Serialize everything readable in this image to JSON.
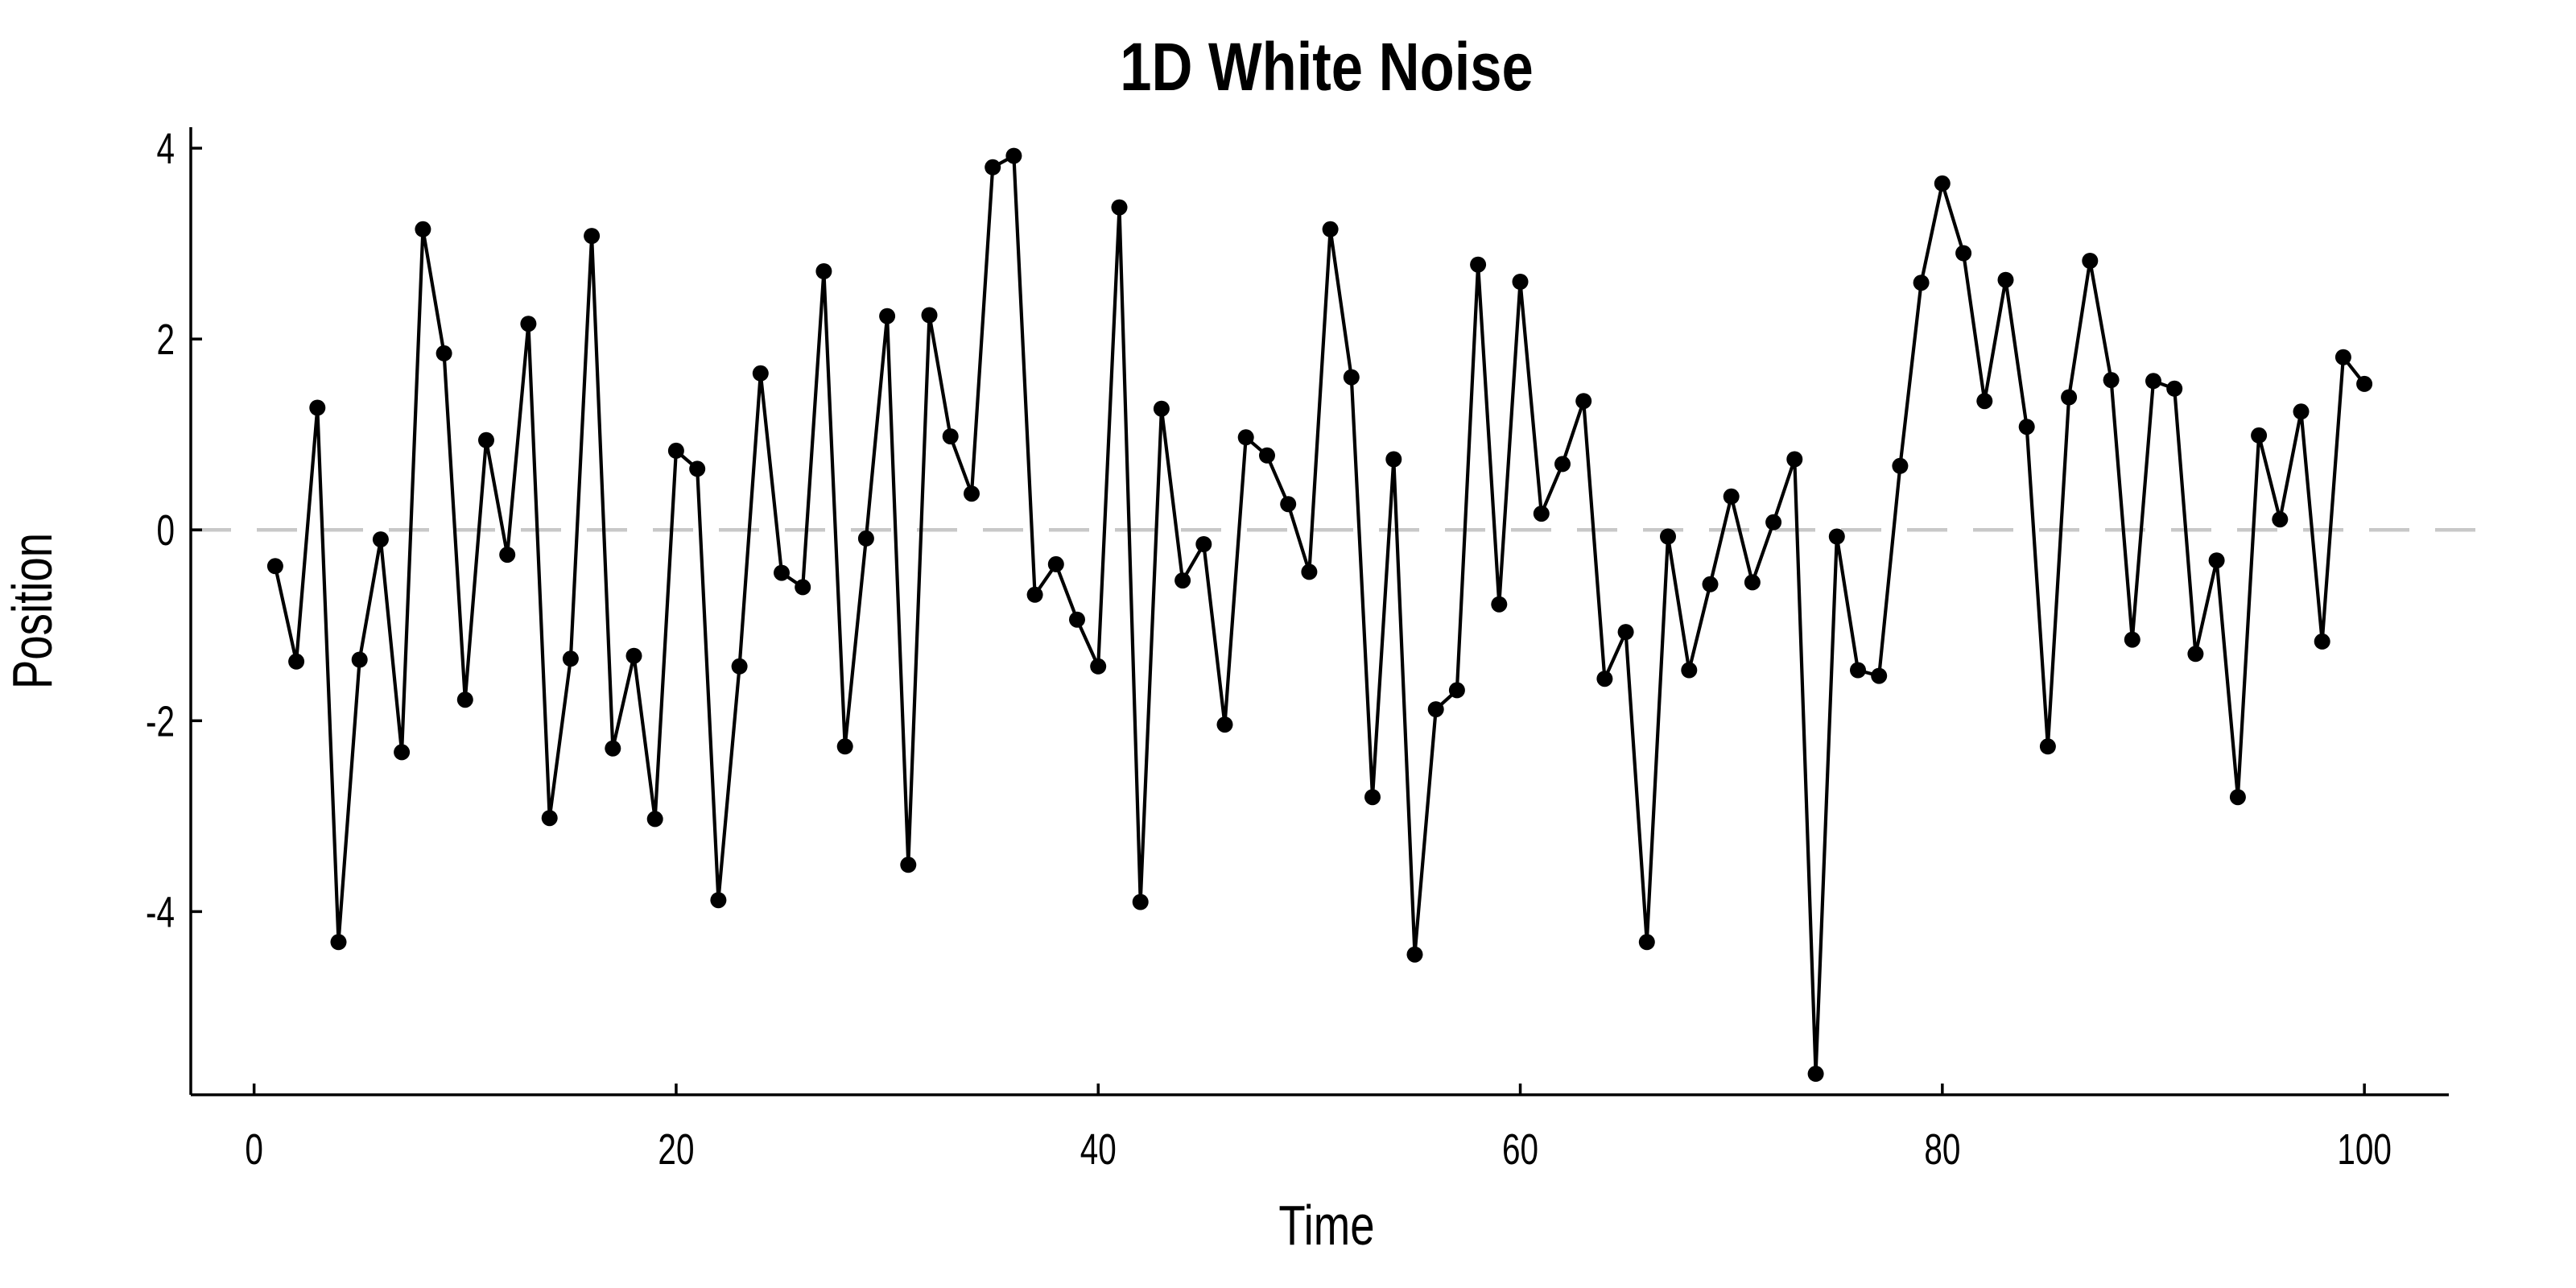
{
  "page": {
    "background": "#ffffff"
  },
  "chart_data": {
    "type": "line",
    "title": "1D White Noise",
    "xlabel": "Time",
    "ylabel": "Position",
    "x": [
      1,
      2,
      3,
      4,
      5,
      6,
      7,
      8,
      9,
      10,
      11,
      12,
      13,
      14,
      15,
      16,
      17,
      18,
      19,
      20,
      21,
      22,
      23,
      24,
      25,
      26,
      27,
      28,
      29,
      30,
      31,
      32,
      33,
      34,
      35,
      36,
      37,
      38,
      39,
      40,
      41,
      42,
      43,
      44,
      45,
      46,
      47,
      48,
      49,
      50,
      51,
      52,
      53,
      54,
      55,
      56,
      57,
      58,
      59,
      60,
      61,
      62,
      63,
      64,
      65,
      66,
      67,
      68,
      69,
      70,
      71,
      72,
      73,
      74,
      75,
      76,
      77,
      78,
      79,
      80,
      81,
      82,
      83,
      84,
      85,
      86,
      87,
      88,
      89,
      90,
      91,
      92,
      93,
      94,
      95,
      96,
      97,
      98,
      99,
      100
    ],
    "y": [
      -0.38,
      -1.38,
      1.28,
      -4.32,
      -1.36,
      -0.1,
      -2.33,
      3.15,
      1.85,
      -1.78,
      0.94,
      -0.26,
      2.16,
      -3.02,
      -1.35,
      3.08,
      -2.29,
      -1.32,
      -3.03,
      0.83,
      0.64,
      -3.88,
      -1.43,
      1.64,
      -0.45,
      -0.6,
      2.71,
      -2.27,
      -0.09,
      2.24,
      -3.51,
      2.25,
      0.98,
      0.38,
      3.8,
      3.92,
      -0.68,
      -0.36,
      -0.94,
      -1.43,
      3.38,
      -3.9,
      1.27,
      -0.53,
      -0.15,
      -2.04,
      0.97,
      0.78,
      0.27,
      -0.44,
      3.15,
      1.6,
      -2.8,
      0.74,
      -4.45,
      -1.88,
      -1.68,
      2.78,
      -0.78,
      2.6,
      0.17,
      0.69,
      1.35,
      -1.56,
      -1.07,
      -4.32,
      -0.07,
      -1.47,
      -0.57,
      0.35,
      -0.55,
      0.08,
      0.74,
      -5.7,
      -0.07,
      -1.47,
      -1.53,
      0.67,
      2.59,
      3.63,
      2.9,
      1.35,
      2.62,
      1.08,
      -2.27,
      1.39,
      2.82,
      1.57,
      -1.15,
      1.56,
      1.48,
      -1.3,
      -0.32,
      -2.8,
      0.99,
      0.11,
      1.24,
      -1.17,
      1.81,
      1.53
    ],
    "xticks": [
      0,
      20,
      40,
      60,
      80,
      100
    ],
    "yticks": [
      -4,
      -2,
      0,
      2,
      4
    ],
    "xtick_labels": [
      "0",
      "20",
      "40",
      "60",
      "80",
      "100"
    ],
    "ytick_labels": [
      "-4",
      "-2",
      "0",
      "2",
      "4"
    ],
    "xlim": [
      -3.0,
      104.0
    ],
    "ylim": [
      -5.92,
      4.22
    ],
    "grid": false,
    "legend": false,
    "reference_line": {
      "y": 0,
      "style": "dashed",
      "color": "#c8c8c8"
    },
    "line_color": "#000000",
    "marker": {
      "shape": "filled-circle",
      "color": "#000000"
    },
    "axis_color": "#000000"
  }
}
